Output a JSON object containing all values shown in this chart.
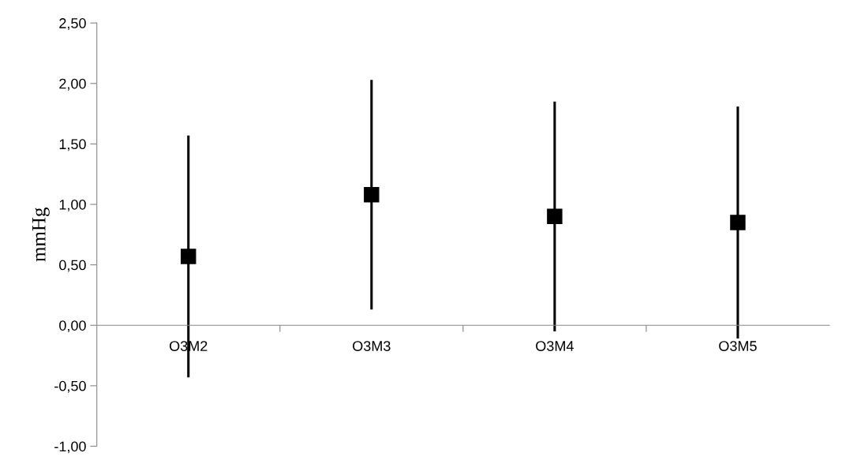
{
  "chart_data": {
    "type": "scatter",
    "ylabel": "mmHg",
    "categories": [
      "O3M2",
      "O3M3",
      "O3M4",
      "O3M5"
    ],
    "series": [
      {
        "color": "#000000",
        "values": [
          0.57,
          1.08,
          0.9,
          0.85
        ],
        "errors": [
          1.0,
          0.95,
          0.95,
          0.96
        ]
      }
    ],
    "marker": "square",
    "grid": false,
    "legend": false,
    "ylim": [
      -1.0,
      2.5
    ],
    "yticks": [
      {
        "value": -1.0,
        "label": "-1,00"
      },
      {
        "value": -0.5,
        "label": "-0,50"
      },
      {
        "value": 0.0,
        "label": "0,00"
      },
      {
        "value": 0.5,
        "label": "0,50"
      },
      {
        "value": 1.0,
        "label": "1,00"
      },
      {
        "value": 1.5,
        "label": "1,50"
      },
      {
        "value": 2.0,
        "label": "2,00"
      },
      {
        "value": 2.5,
        "label": "2,50"
      }
    ]
  }
}
